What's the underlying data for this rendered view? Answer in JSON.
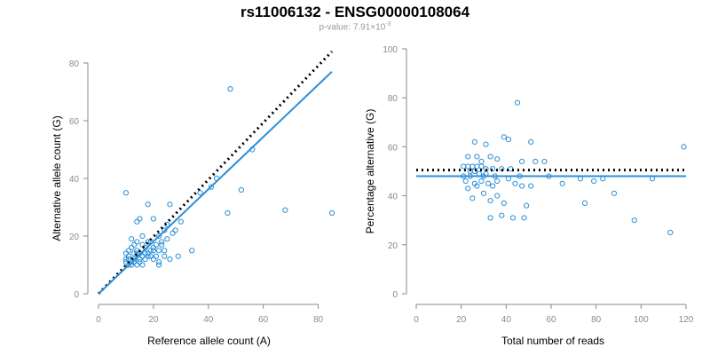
{
  "header": {
    "title": "rs11006132 - ENSG00000108064",
    "pvalue_prefix": "p-value: 7.91×10",
    "pvalue_exponent": "-3"
  },
  "colors": {
    "points": "#2b8fd8",
    "fit_line": "#2b8fd8",
    "reference_line": "#000000",
    "axis": "#8a8a8a"
  },
  "chart_data": [
    {
      "type": "scatter",
      "id": "left",
      "title": "",
      "xlabel": "Reference allele count (A)",
      "ylabel": "Alternative allele count (G)",
      "xlim": [
        0,
        85
      ],
      "ylim": [
        0,
        80
      ],
      "xticks": [
        0,
        20,
        40,
        60,
        80
      ],
      "yticks": [
        0,
        20,
        40,
        60,
        80
      ],
      "grid": false,
      "legend": "none",
      "points": [
        [
          10,
          35
        ],
        [
          48,
          71
        ],
        [
          14,
          25
        ],
        [
          15,
          26
        ],
        [
          18,
          31
        ],
        [
          26,
          31
        ],
        [
          37,
          35
        ],
        [
          41,
          37
        ],
        [
          43,
          40
        ],
        [
          52,
          36
        ],
        [
          56,
          50
        ],
        [
          47,
          28
        ],
        [
          68,
          29
        ],
        [
          85,
          28
        ],
        [
          25,
          24
        ],
        [
          24,
          22
        ],
        [
          20,
          26
        ],
        [
          30,
          25
        ],
        [
          28,
          22
        ],
        [
          22,
          20
        ],
        [
          18,
          18
        ],
        [
          16,
          20
        ],
        [
          14,
          18
        ],
        [
          12,
          16
        ],
        [
          12,
          19
        ],
        [
          11,
          15
        ],
        [
          10,
          14
        ],
        [
          13,
          14
        ],
        [
          14,
          15
        ],
        [
          15,
          14
        ],
        [
          16,
          13
        ],
        [
          17,
          16
        ],
        [
          19,
          18
        ],
        [
          20,
          16
        ],
        [
          21,
          17
        ],
        [
          22,
          15
        ],
        [
          23,
          18
        ],
        [
          24,
          15
        ],
        [
          24,
          13
        ],
        [
          22,
          11
        ],
        [
          20,
          12
        ],
        [
          18,
          13
        ],
        [
          17,
          14
        ],
        [
          15,
          12
        ],
        [
          13,
          12
        ],
        [
          12,
          11
        ],
        [
          11,
          13
        ],
        [
          10,
          11
        ],
        [
          10,
          12
        ],
        [
          11,
          10
        ],
        [
          12,
          10
        ],
        [
          13,
          11
        ],
        [
          14,
          10
        ],
        [
          15,
          11
        ],
        [
          16,
          10
        ],
        [
          17,
          12
        ],
        [
          18,
          14
        ],
        [
          19,
          13
        ],
        [
          20,
          15
        ],
        [
          21,
          13
        ],
        [
          23,
          17
        ],
        [
          25,
          19
        ],
        [
          27,
          21
        ],
        [
          26,
          12
        ],
        [
          29,
          13
        ],
        [
          34,
          15
        ],
        [
          22,
          10
        ],
        [
          19,
          15
        ],
        [
          16,
          17
        ],
        [
          14,
          14
        ],
        [
          13,
          17
        ],
        [
          11,
          12
        ]
      ],
      "fit_line": [
        [
          0,
          0
        ],
        [
          85,
          77
        ]
      ],
      "reference_line": [
        [
          0,
          0
        ],
        [
          85,
          84
        ]
      ]
    },
    {
      "type": "scatter",
      "id": "right",
      "title": "",
      "xlabel": "Total number of reads",
      "ylabel": "Percentage alternative (G)",
      "xlim": [
        0,
        120
      ],
      "ylim": [
        0,
        100
      ],
      "xticks": [
        0,
        20,
        40,
        60,
        80,
        100,
        120
      ],
      "yticks": [
        0,
        20,
        40,
        60,
        80,
        100
      ],
      "grid": false,
      "legend": "none",
      "points": [
        [
          45,
          78
        ],
        [
          26,
          62
        ],
        [
          31,
          61
        ],
        [
          39,
          64
        ],
        [
          41,
          63
        ],
        [
          51,
          62
        ],
        [
          119,
          60
        ],
        [
          23,
          56
        ],
        [
          27,
          56
        ],
        [
          33,
          56
        ],
        [
          36,
          55
        ],
        [
          29,
          54
        ],
        [
          47,
          54
        ],
        [
          53,
          54
        ],
        [
          57,
          54
        ],
        [
          21,
          52
        ],
        [
          23,
          52
        ],
        [
          25,
          52
        ],
        [
          27,
          52
        ],
        [
          29,
          52
        ],
        [
          31,
          51
        ],
        [
          34,
          51
        ],
        [
          38,
          51
        ],
        [
          42,
          51
        ],
        [
          24,
          50
        ],
        [
          26,
          50
        ],
        [
          28,
          49
        ],
        [
          31,
          49
        ],
        [
          21,
          48
        ],
        [
          24,
          48
        ],
        [
          30,
          48
        ],
        [
          35,
          48
        ],
        [
          41,
          47
        ],
        [
          46,
          48
        ],
        [
          59,
          48
        ],
        [
          73,
          47
        ],
        [
          83,
          47
        ],
        [
          105,
          47
        ],
        [
          22,
          46
        ],
        [
          26,
          45
        ],
        [
          29,
          46
        ],
        [
          32,
          45
        ],
        [
          36,
          46
        ],
        [
          44,
          45
        ],
        [
          51,
          44
        ],
        [
          23,
          43
        ],
        [
          27,
          44
        ],
        [
          34,
          44
        ],
        [
          47,
          44
        ],
        [
          65,
          45
        ],
        [
          79,
          46
        ],
        [
          30,
          41
        ],
        [
          36,
          40
        ],
        [
          88,
          41
        ],
        [
          25,
          39
        ],
        [
          33,
          38
        ],
        [
          75,
          37
        ],
        [
          39,
          37
        ],
        [
          49,
          36
        ],
        [
          43,
          31
        ],
        [
          33,
          31
        ],
        [
          48,
          31
        ],
        [
          38,
          32
        ],
        [
          97,
          30
        ],
        [
          113,
          25
        ]
      ],
      "fit_line": [
        [
          0,
          48
        ],
        [
          120,
          48
        ]
      ],
      "reference_line": [
        [
          0,
          50.5
        ],
        [
          120,
          50.5
        ]
      ]
    }
  ]
}
